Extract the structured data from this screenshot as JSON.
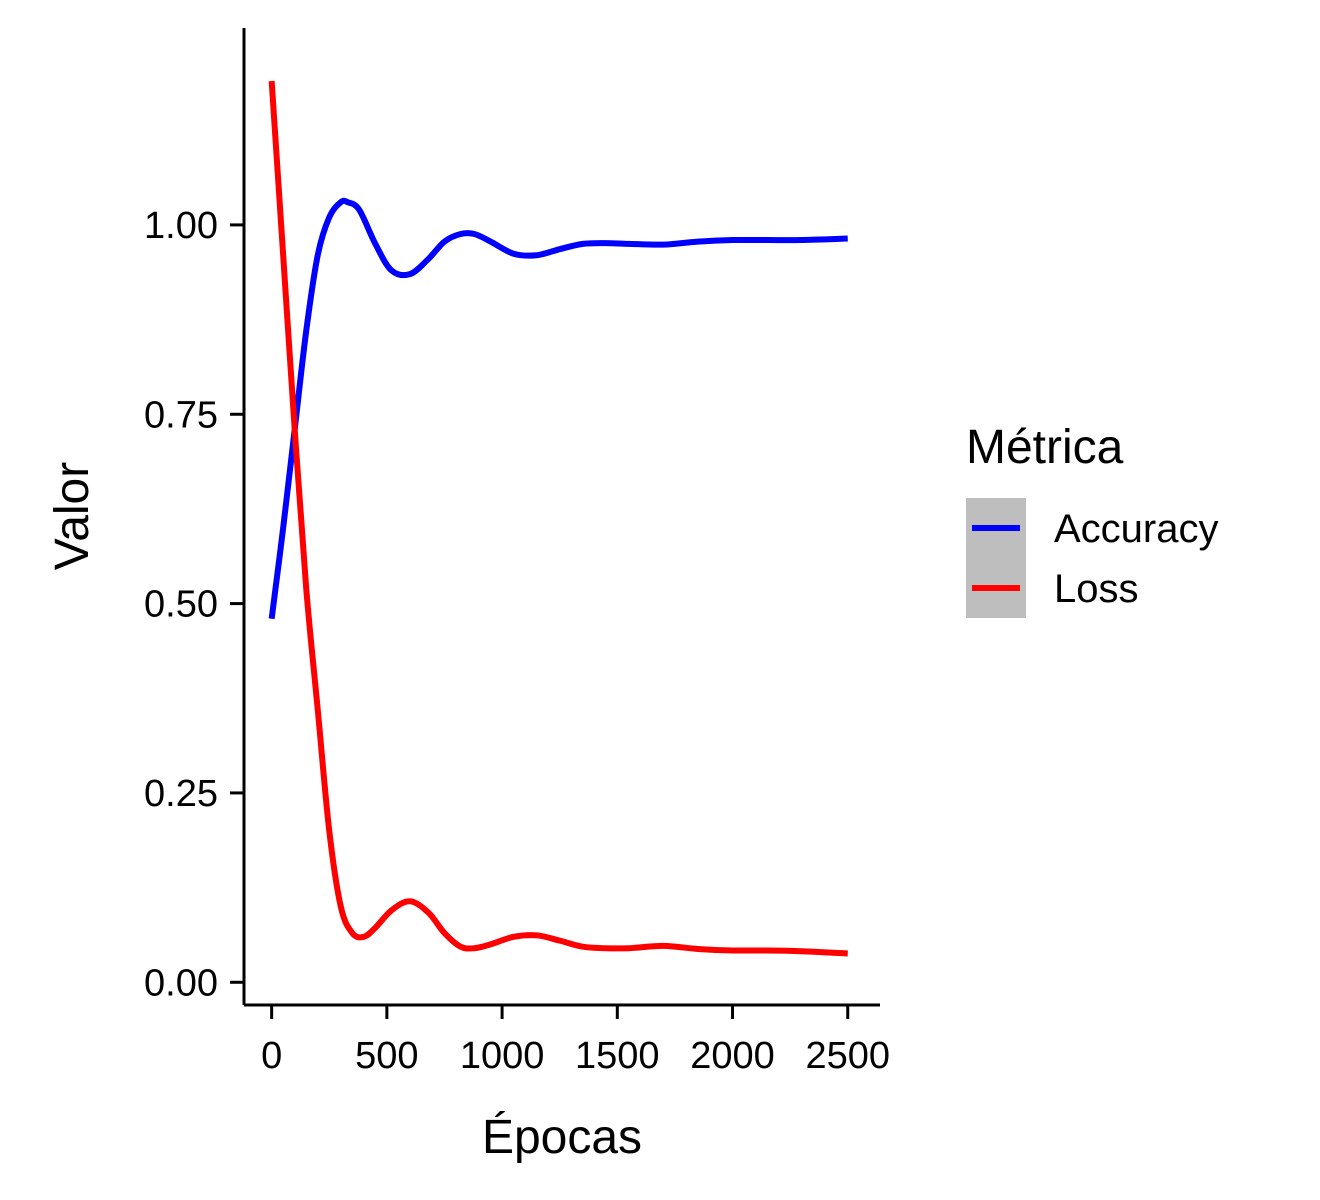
{
  "chart_data": {
    "type": "line",
    "title": "",
    "xlabel": "Épocas",
    "ylabel": "Valor",
    "xlim": [
      -120,
      2640
    ],
    "ylim": [
      -0.03,
      1.26
    ],
    "x_ticks": [
      0,
      500,
      1000,
      1500,
      2000,
      2500
    ],
    "x_tick_labels": [
      "0",
      "500",
      "1000",
      "1500",
      "2000",
      "2500"
    ],
    "y_ticks": [
      0,
      0.25,
      0.5,
      0.75,
      1.0
    ],
    "y_tick_labels": [
      "0.00",
      "0.25",
      "0.50",
      "0.75",
      "1.00"
    ],
    "grid": false,
    "legend": {
      "title": "Métrica",
      "placement": "right"
    },
    "series": [
      {
        "name": "Accuracy",
        "color": "#0000ff",
        "x": [
          0,
          50,
          100,
          150,
          200,
          250,
          300,
          330,
          380,
          450,
          520,
          600,
          680,
          750,
          820,
          880,
          950,
          1050,
          1150,
          1250,
          1350,
          1450,
          1550,
          1700,
          1850,
          2000,
          2150,
          2300,
          2500
        ],
        "y": [
          0.48,
          0.6,
          0.73,
          0.86,
          0.96,
          1.01,
          1.03,
          1.03,
          1.02,
          0.975,
          0.94,
          0.935,
          0.955,
          0.978,
          0.988,
          0.988,
          0.978,
          0.962,
          0.96,
          0.968,
          0.975,
          0.976,
          0.975,
          0.974,
          0.978,
          0.98,
          0.98,
          0.98,
          0.982
        ]
      },
      {
        "name": "Loss",
        "color": "#ff0000",
        "x": [
          0,
          50,
          100,
          150,
          200,
          250,
          300,
          350,
          400,
          450,
          520,
          600,
          680,
          750,
          820,
          880,
          950,
          1050,
          1150,
          1250,
          1350,
          1450,
          1550,
          1700,
          1850,
          2000,
          2150,
          2300,
          2500
        ],
        "y": [
          1.19,
          0.96,
          0.73,
          0.52,
          0.36,
          0.2,
          0.1,
          0.065,
          0.06,
          0.072,
          0.095,
          0.107,
          0.092,
          0.065,
          0.047,
          0.045,
          0.05,
          0.06,
          0.062,
          0.055,
          0.047,
          0.045,
          0.045,
          0.048,
          0.044,
          0.042,
          0.042,
          0.041,
          0.038
        ]
      }
    ]
  }
}
